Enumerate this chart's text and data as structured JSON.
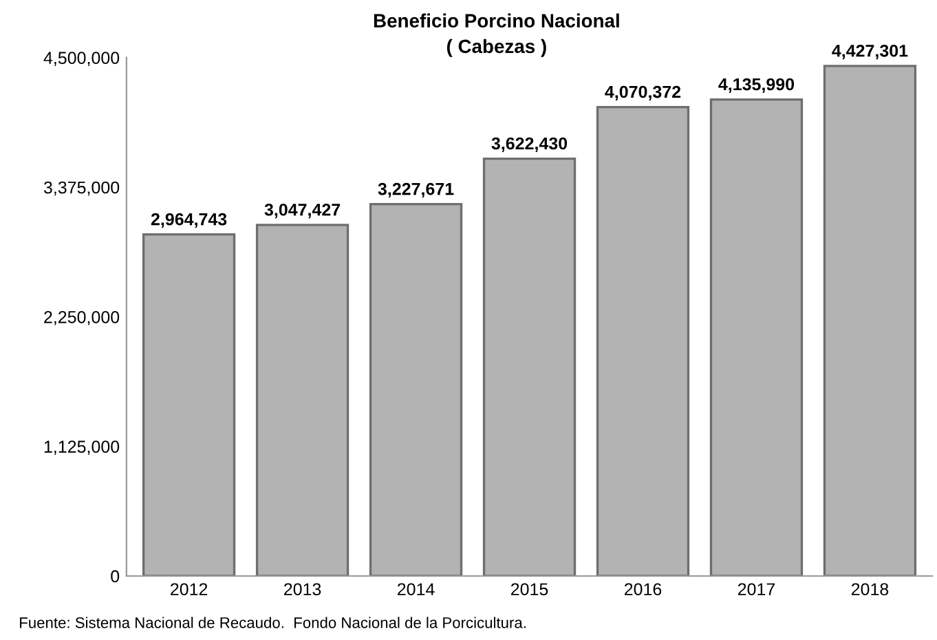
{
  "chart_data": {
    "type": "bar",
    "title": "Beneficio Porcino Nacional",
    "subtitle": "( Cabezas )",
    "categories": [
      "2012",
      "2013",
      "2014",
      "2015",
      "2016",
      "2017",
      "2018"
    ],
    "values": [
      2964743,
      3047427,
      3227671,
      3622430,
      4070372,
      4135990,
      4427301
    ],
    "value_labels": [
      "2,964,743",
      "3,047,427",
      "3,227,671",
      "3,622,430",
      "4,070,372",
      "4,135,990",
      "4,427,301"
    ],
    "color": "#b3b3b3",
    "ylim": [
      0,
      4500000
    ],
    "yticks": [
      0,
      {
        "value": 1125000,
        "label": "1,125,000"
      },
      {
        "value": 2250000,
        "label": "2,250,000"
      },
      {
        "value": 3375000,
        "label": "3,375,000"
      },
      {
        "value": 4500000,
        "label": "4,500,000"
      }
    ],
    "grid": false,
    "annotations": [
      "Fuente: Sistema Nacional de Recaudo.  Fondo Nacional de la Porcicultura."
    ]
  }
}
